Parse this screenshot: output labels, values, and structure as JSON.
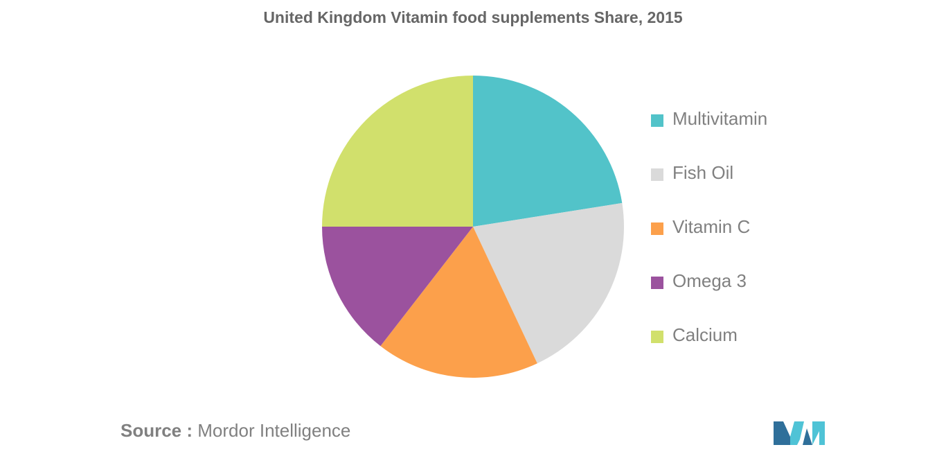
{
  "chart_data": {
    "type": "pie",
    "title": "United Kingdom Vitamin food supplements Share, 2015",
    "categories": [
      "Multivitamin",
      "Fish Oil",
      "Vitamin C",
      "Omega 3",
      "Calcium"
    ],
    "values": [
      22.5,
      20.5,
      17.5,
      14.5,
      25
    ],
    "colors": [
      "#52c3c9",
      "#dadada",
      "#fca04b",
      "#9b529e",
      "#d1e06c"
    ],
    "legend_position": "right",
    "start_angle": "12 o'clock",
    "direction": "clockwise"
  },
  "source": {
    "label": "Source :",
    "text": "Mordor Intelligence"
  },
  "logo": {
    "name": "mordor-intelligence-logo",
    "colors": [
      "#2f6f9a",
      "#4fc3d6"
    ]
  }
}
